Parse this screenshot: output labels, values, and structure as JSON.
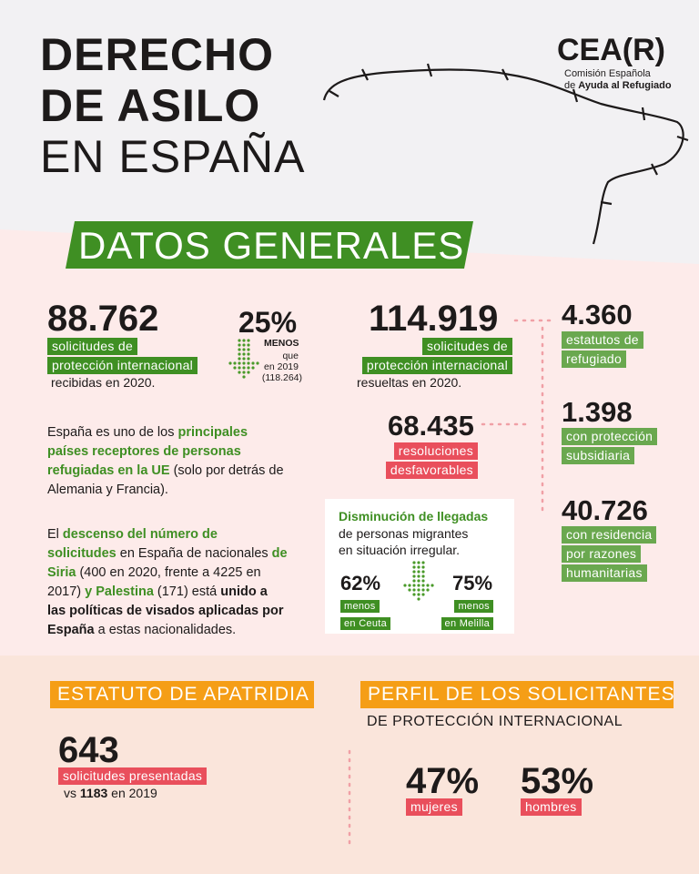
{
  "header": {
    "title": [
      "DERECHO",
      "DE ASILO",
      "EN ESPAÑA"
    ],
    "logo": {
      "name": "CEA(R)",
      "line1": "Comisión Española",
      "line2": [
        "de ",
        "Ayuda al Refugiado"
      ]
    }
  },
  "datos_generales": {
    "heading": "DATOS GENERALES",
    "recibidas": {
      "value": "88.762",
      "label": [
        "solicitudes de",
        "protección internacional"
      ],
      "note": "recibidas en 2020."
    },
    "variacion": {
      "value": "25%",
      "label": "MENOS",
      "note": [
        "que",
        "en 2019",
        "(118.264)"
      ]
    },
    "resueltas": {
      "value": "114.919",
      "label": [
        "solicitudes de",
        "protección internacional"
      ],
      "note": "resueltas en 2020."
    },
    "resoluciones": [
      {
        "value": "4.360",
        "label": [
          "estatutos de",
          "refugiado"
        ]
      },
      {
        "value": "1.398",
        "label": [
          "con protección",
          "subsidiaria"
        ]
      },
      {
        "value": "40.726",
        "label": [
          "con residencia",
          "por razones",
          "humanitarias"
        ]
      }
    ],
    "desfavorables": {
      "value": "68.435",
      "label": [
        "resoluciones",
        "desfavorables"
      ]
    },
    "paragraphs": [
      [
        "España es uno de los ",
        "principales países receptores de personas refugiadas en la UE",
        " (solo por detrás de Alemania y Francia)."
      ],
      [
        "El ",
        "descenso del número de solicitudes",
        " en España de nacionales ",
        "de Siria",
        " (400 en 2020, frente a 4225 en 2017) ",
        "y Palestina",
        " (171) está ",
        "unido a las políticas de visados aplicadas por España",
        " a estas nacionalidades."
      ]
    ],
    "llegadas": {
      "title": "Disminución de llegadas",
      "text": [
        "de personas migrantes",
        "en situación irregular."
      ],
      "items": [
        {
          "value": "62%",
          "label": [
            "menos",
            "en Ceuta"
          ]
        },
        {
          "value": "75%",
          "label": [
            "menos",
            "en Melilla"
          ]
        }
      ]
    }
  },
  "apatridia": {
    "heading": "ESTATUTO DE APATRIDIA",
    "value": "643",
    "label": "solicitudes presentadas",
    "note": [
      "vs ",
      "1183",
      " en 2019"
    ]
  },
  "perfil": {
    "heading": "PERFIL DE LOS SOLICITANTES",
    "subheading": "DE PROTECCIÓN INTERNACIONAL",
    "items": [
      {
        "value": "47%",
        "label": "mujeres"
      },
      {
        "value": "53%",
        "label": "hombres"
      }
    ]
  }
}
